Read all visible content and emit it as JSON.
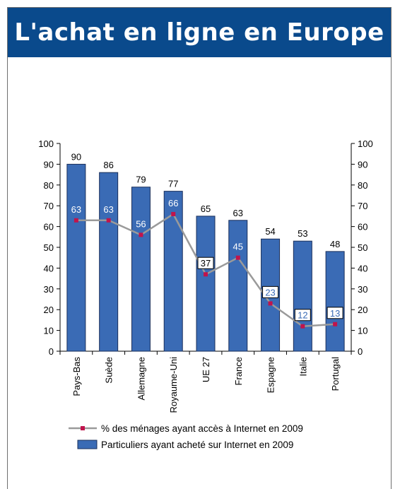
{
  "title": "L'achat en ligne en Europe",
  "colors": {
    "header_bg": "#0a4a8c",
    "bar_fill": "#3a6bb5",
    "line": "#9a9a9a",
    "marker": "#c0144c"
  },
  "chart_data": {
    "type": "bar",
    "categories": [
      "Pays-Bas",
      "Suède",
      "Allemagne",
      "Royaume-Uni",
      "UE 27",
      "France",
      "Espagne",
      "Italie",
      "Portugal"
    ],
    "series": [
      {
        "name": "Particuliers ayant acheté sur Internet en 2009",
        "type": "bar",
        "values": [
          90,
          86,
          79,
          77,
          65,
          63,
          54,
          53,
          48
        ]
      },
      {
        "name": "% des ménages ayant accès à Internet en 2009",
        "type": "line",
        "values": [
          63,
          63,
          56,
          66,
          37,
          45,
          23,
          12,
          13
        ]
      }
    ],
    "ylim": [
      0,
      100
    ],
    "yticks": [
      0,
      10,
      20,
      30,
      40,
      50,
      60,
      70,
      80,
      90,
      100
    ],
    "secondary_axis": true,
    "legend_position": "bottom",
    "grid": false
  }
}
